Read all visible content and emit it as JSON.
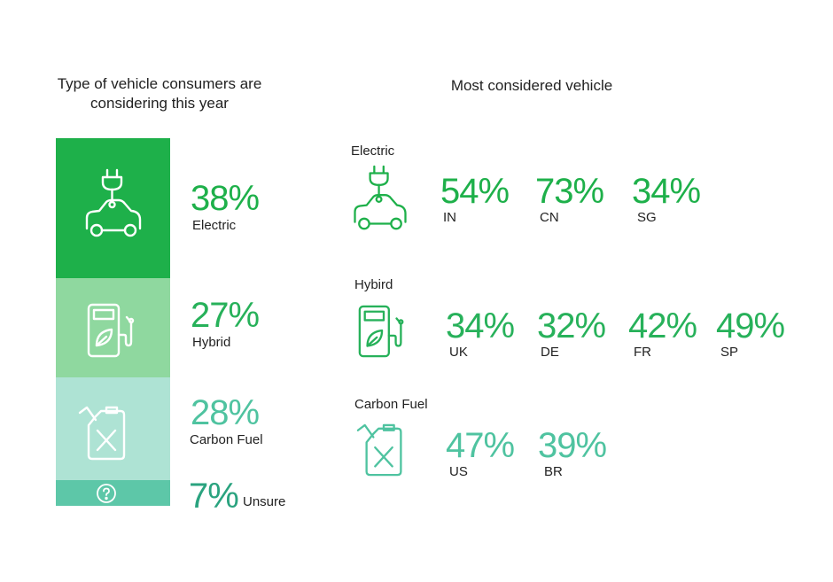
{
  "left_title": [
    "Type of vehicle consumers are",
    "considering this year"
  ],
  "right_title": "Most considered vehicle",
  "chart_data": [
    {
      "type": "bar",
      "stacked": true,
      "title": "Type of vehicle consumers are considering this year",
      "categories": [
        "Electric",
        "Hybrid",
        "Carbon Fuel",
        "Unsure"
      ],
      "values": [
        38,
        27,
        28,
        7
      ],
      "labels": [
        "38%",
        "27%",
        "28%",
        "7%"
      ],
      "colors": [
        "#1eb04a",
        "#8fd89f",
        "#aee3d4",
        "#5dc7a8"
      ]
    },
    {
      "type": "table",
      "title": "Most considered vehicle",
      "groups": [
        {
          "name": "Electric",
          "countries": [
            "IN",
            "CN",
            "SG"
          ],
          "values": [
            54,
            73,
            34
          ],
          "labels": [
            "54%",
            "73%",
            "34%"
          ]
        },
        {
          "name": "Hybird",
          "countries": [
            "UK",
            "DE",
            "FR",
            "SP"
          ],
          "values": [
            34,
            32,
            42,
            49
          ],
          "labels": [
            "34%",
            "32%",
            "42%",
            "49%"
          ]
        },
        {
          "name": "Carbon Fuel",
          "countries": [
            "US",
            "BR"
          ],
          "values": [
            47,
            39
          ],
          "labels": [
            "47%",
            "39%"
          ]
        }
      ]
    }
  ],
  "colors": {
    "electric": "#1eb04a",
    "hybrid": "#8fd89f",
    "carbon": "#aee3d4",
    "unsure": "#5dc7a8",
    "electric_text": "#1eb04a",
    "hybrid_text": "#27b15a",
    "carbon_text": "#4fc3a0",
    "unsure_text": "#2aa37f"
  },
  "icons": [
    "plug-car-icon",
    "fuel-pump-leaf-icon",
    "jerrycan-icon",
    "question-icon"
  ]
}
